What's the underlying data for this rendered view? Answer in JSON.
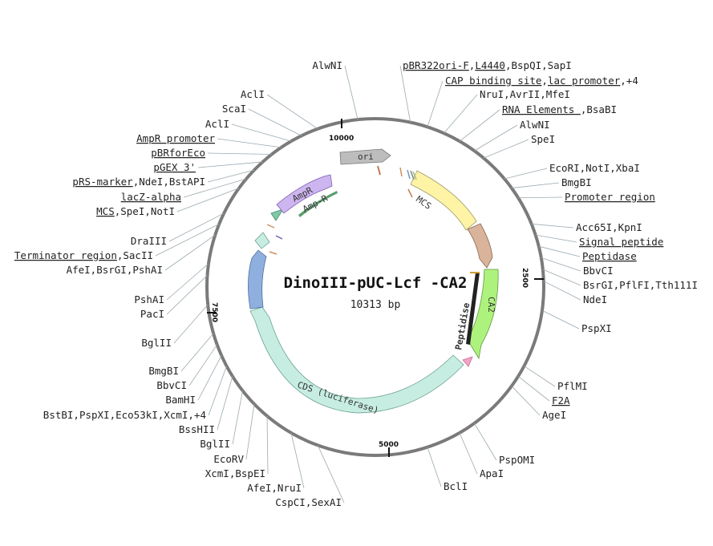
{
  "plasmid": {
    "name": "DinoIII-pUC-Lcf -CA2",
    "size_label": "10313 bp",
    "length": 10313
  },
  "ticks": [
    {
      "label": "10000",
      "position": 10000
    },
    {
      "label": "2500",
      "position": 2500
    },
    {
      "label": "5000",
      "position": 5000
    },
    {
      "label": "7500",
      "position": 7500
    }
  ],
  "features": [
    {
      "name": "ori",
      "label": "ori",
      "color": "#bdbdbd"
    },
    {
      "name": "mcs",
      "label": "MCS",
      "color": "#fff3a6"
    },
    {
      "name": "promoter",
      "label": "",
      "color": "#d9b49a"
    },
    {
      "name": "ca2",
      "label": "CA2",
      "color": "#aef27e"
    },
    {
      "name": "peptidise",
      "label": "Peptidise",
      "color": "#222222"
    },
    {
      "name": "f2a",
      "label": "",
      "color": "#f5a3c7"
    },
    {
      "name": "cds-luciferase",
      "label": "CDS (luciferase)",
      "color": "#c7ede2"
    },
    {
      "name": "blue-feature",
      "label": "",
      "color": "#8fb0de"
    },
    {
      "name": "small-teal",
      "label": "",
      "color": "#c7ede2"
    },
    {
      "name": "amp-promoter-arrow",
      "label": "",
      "color": "#7fc9a5"
    },
    {
      "name": "ampr",
      "label": "AmpR",
      "color": "#cdb6ef"
    },
    {
      "name": "amp-r",
      "label": "Amp-R",
      "color": "#5a9e6e"
    }
  ],
  "sites_right": [
    {
      "text": "pBR322ori-F,L4440,BspQI,SapI",
      "underline": [
        [
          0,
          11
        ],
        [
          12,
          17
        ]
      ]
    },
    {
      "text": "CAP binding site,lac promoter,+4",
      "underline": [
        [
          0,
          16
        ],
        [
          17,
          29
        ]
      ]
    },
    {
      "text": "NruI,AvrII,MfeI",
      "underline": []
    },
    {
      "text": "RNA Elements ,BsaBI",
      "underline": [
        [
          0,
          13
        ]
      ]
    },
    {
      "text": "AlwNI",
      "underline": []
    },
    {
      "text": "SpeI",
      "underline": []
    },
    {
      "text": "EcoRI,NotI,XbaI",
      "underline": []
    },
    {
      "text": "BmgBI",
      "underline": []
    },
    {
      "text": "Promoter region",
      "underline": [
        [
          0,
          15
        ]
      ]
    },
    {
      "text": "Acc65I,KpnI",
      "underline": []
    },
    {
      "text": "Signal peptide",
      "underline": [
        [
          0,
          14
        ]
      ]
    },
    {
      "text": "Peptidase",
      "underline": [
        [
          0,
          9
        ]
      ]
    },
    {
      "text": "BbvCI",
      "underline": []
    },
    {
      "text": "BsrGI,PflFI,Tth111I",
      "underline": []
    },
    {
      "text": "NdeI",
      "underline": []
    },
    {
      "text": "PspXI",
      "underline": []
    },
    {
      "text": "PflMI",
      "underline": []
    },
    {
      "text": "F2A",
      "underline": [
        [
          0,
          3
        ]
      ]
    },
    {
      "text": "AgeI",
      "underline": []
    },
    {
      "text": "PspOMI",
      "underline": []
    },
    {
      "text": "ApaI",
      "underline": []
    },
    {
      "text": "BclI",
      "underline": []
    }
  ],
  "sites_left": [
    {
      "text": "AlwNI",
      "underline": []
    },
    {
      "text": "AclI",
      "underline": []
    },
    {
      "text": "ScaI",
      "underline": []
    },
    {
      "text": "AclI",
      "underline": []
    },
    {
      "text": "AmpR promoter",
      "underline": [
        [
          0,
          13
        ]
      ]
    },
    {
      "text": "pBRforEco",
      "underline": [
        [
          0,
          9
        ]
      ]
    },
    {
      "text": "pGEX 3'",
      "underline": [
        [
          0,
          7
        ]
      ]
    },
    {
      "text": "pRS-marker,NdeI,BstAPI",
      "underline": [
        [
          0,
          10
        ]
      ]
    },
    {
      "text": "lacZ-alpha",
      "underline": [
        [
          0,
          10
        ]
      ]
    },
    {
      "text": "MCS,SpeI,NotI",
      "underline": [
        [
          0,
          3
        ]
      ]
    },
    {
      "text": "DraIII",
      "underline": []
    },
    {
      "text": "Terminator region,SacII",
      "underline": [
        [
          0,
          17
        ]
      ]
    },
    {
      "text": "AfeI,BsrGI,PshAI",
      "underline": []
    },
    {
      "text": "PshAI",
      "underline": []
    },
    {
      "text": "PacI",
      "underline": []
    },
    {
      "text": "BglII",
      "underline": []
    },
    {
      "text": "BmgBI",
      "underline": []
    },
    {
      "text": "BbvCI",
      "underline": []
    },
    {
      "text": "BamHI",
      "underline": []
    },
    {
      "text": "BstBI,PspXI,Eco53kI,XcmI,+4",
      "underline": []
    },
    {
      "text": "BssHII",
      "underline": []
    },
    {
      "text": "BglII",
      "underline": []
    },
    {
      "text": "EcoRV",
      "underline": []
    },
    {
      "text": "XcmI,BspEI",
      "underline": []
    },
    {
      "text": "AfeI,NruI",
      "underline": []
    },
    {
      "text": "CspCI,SexAI",
      "underline": []
    }
  ]
}
